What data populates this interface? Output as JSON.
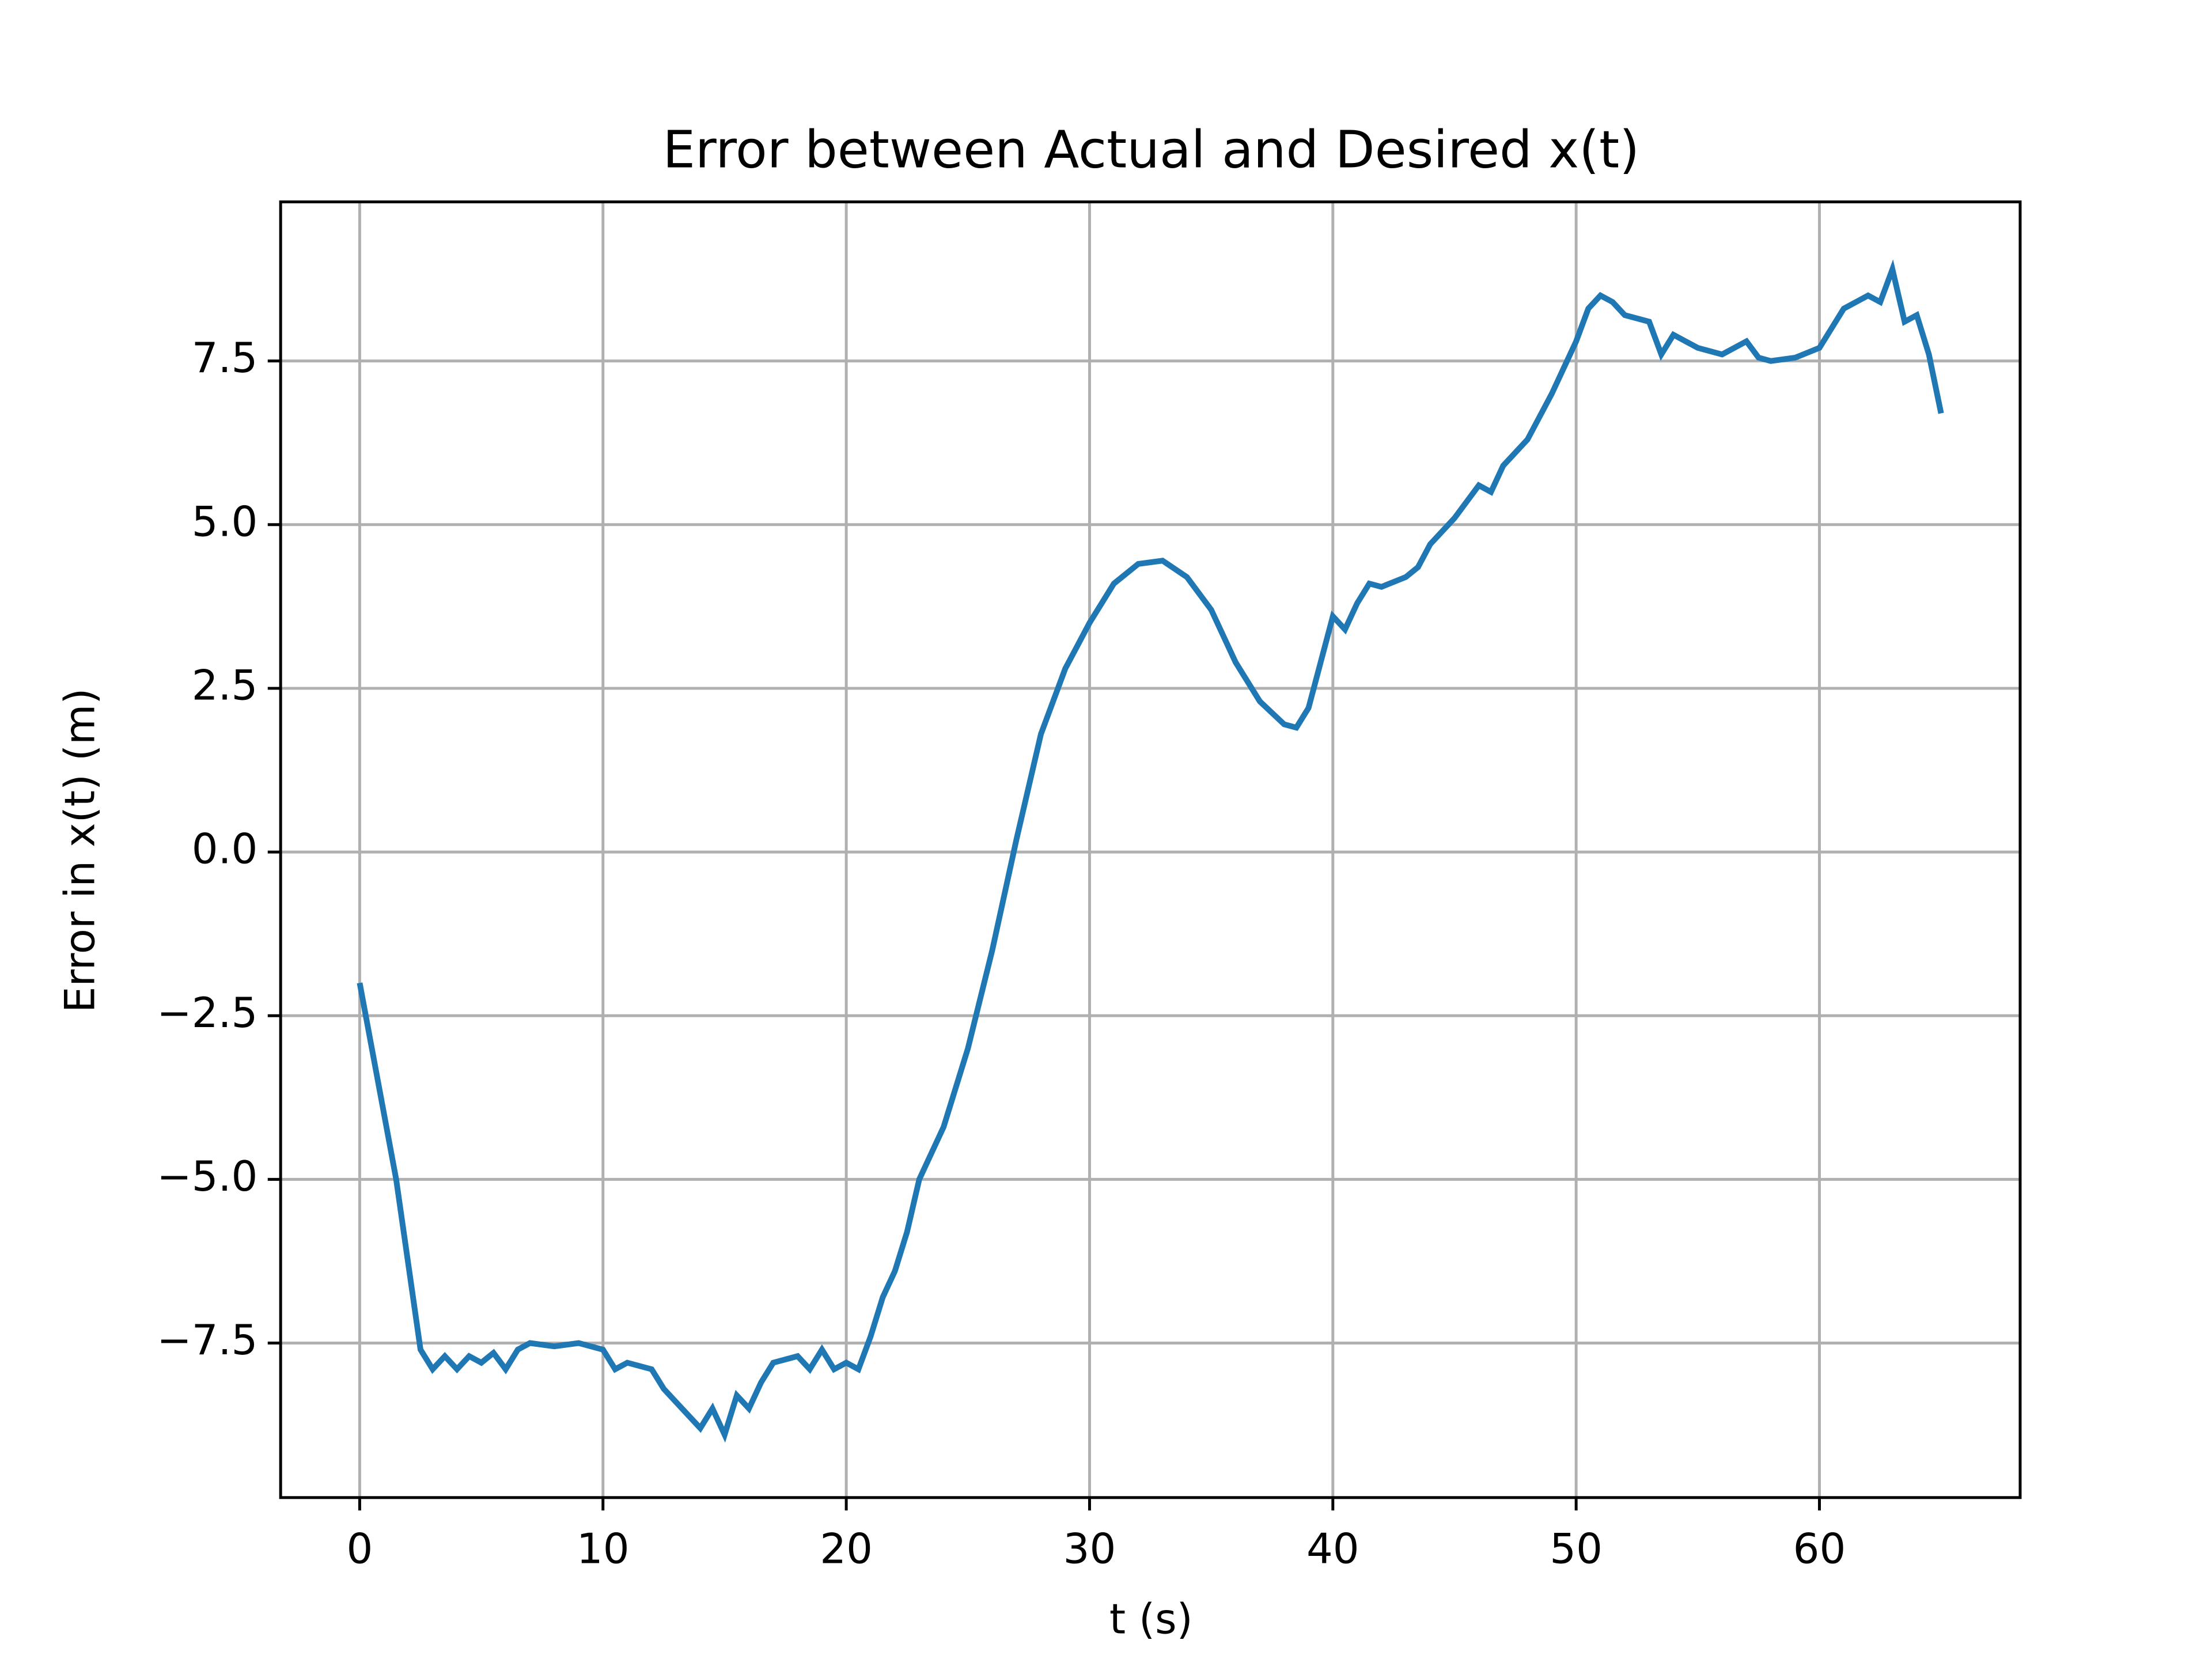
{
  "chart_data": {
    "type": "line",
    "title": "Error between Actual and Desired x(t)",
    "x_label": "t (s)",
    "y_label": "Error in x(t) (m)",
    "x": [
      0,
      0.5,
      1,
      1.5,
      2,
      2.5,
      3,
      3.5,
      4,
      4.5,
      5,
      5.5,
      6,
      6.5,
      7,
      8,
      9,
      10,
      10.5,
      11,
      12,
      12.5,
      13,
      13.5,
      14,
      14.5,
      15,
      15.5,
      16,
      16.5,
      17,
      18,
      18.5,
      19,
      19.5,
      20,
      20.5,
      21,
      21.5,
      22,
      22.5,
      23,
      24,
      25,
      26,
      27,
      28,
      29,
      30,
      31,
      32,
      33,
      34,
      35,
      36,
      37,
      38,
      38.5,
      39,
      39.5,
      40,
      40.5,
      41,
      41.5,
      42,
      43,
      43.5,
      44,
      45,
      46,
      46.5,
      47,
      48,
      49,
      50,
      50.5,
      51,
      51.5,
      52,
      53,
      53.5,
      54,
      55,
      56,
      57,
      57.5,
      58,
      59,
      60,
      60.5,
      61,
      62,
      62.5,
      63,
      63.5,
      64,
      64.5,
      65
    ],
    "series": [
      {
        "color": "#1f77b4",
        "values": [
          -2.0,
          -3.0,
          -4.0,
          -5.0,
          -6.3,
          -7.6,
          -7.9,
          -7.7,
          -7.9,
          -7.7,
          -7.8,
          -7.65,
          -7.9,
          -7.6,
          -7.5,
          -7.55,
          -7.5,
          -7.6,
          -7.9,
          -7.8,
          -7.9,
          -8.2,
          -8.4,
          -8.6,
          -8.8,
          -8.5,
          -8.9,
          -8.3,
          -8.5,
          -8.1,
          -7.8,
          -7.7,
          -7.9,
          -7.6,
          -7.9,
          -7.8,
          -7.9,
          -7.4,
          -6.8,
          -6.4,
          -5.8,
          -5.0,
          -4.2,
          -3.0,
          -1.5,
          0.2,
          1.8,
          2.8,
          3.5,
          4.1,
          4.4,
          4.45,
          4.2,
          3.7,
          2.9,
          2.3,
          1.95,
          1.9,
          2.2,
          2.9,
          3.6,
          3.4,
          3.8,
          4.1,
          4.05,
          4.2,
          4.35,
          4.7,
          5.1,
          5.6,
          5.5,
          5.9,
          6.3,
          7.0,
          7.8,
          8.3,
          8.5,
          8.4,
          8.2,
          8.1,
          7.6,
          7.9,
          7.7,
          7.6,
          7.8,
          7.55,
          7.5,
          7.55,
          7.7,
          8.0,
          8.3,
          8.5,
          8.4,
          8.9,
          8.1,
          8.2,
          7.6,
          6.7
        ]
      }
    ],
    "xlim": [
      -3.25,
      68.25
    ],
    "ylim": [
      -9.86,
      9.93
    ],
    "xticks": [
      0,
      10,
      20,
      30,
      40,
      50,
      60
    ],
    "yticks": [
      {
        "value": -7.5,
        "label": "−7.5"
      },
      {
        "value": -5,
        "label": "−5.0"
      },
      {
        "value": -2.5,
        "label": "−2.5"
      },
      {
        "value": 0,
        "label": "0.0"
      },
      2.5,
      {
        "value": 5,
        "label": "5.0"
      },
      7.5
    ],
    "grid": true
  }
}
